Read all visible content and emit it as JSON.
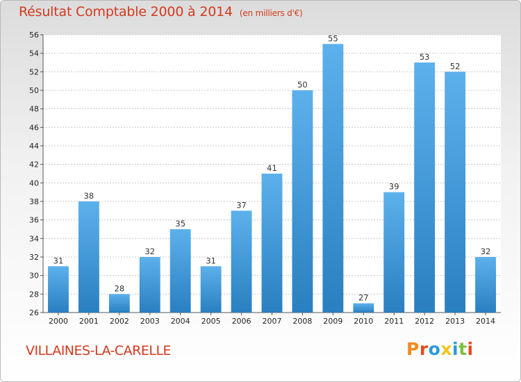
{
  "header": {
    "title": "Résultat Comptable 2000 à 2014",
    "subtitle": "(en milliers d'€)"
  },
  "footer": {
    "commune": "VILLAINES-LA-CARELLE",
    "logo_text": "Proxiti"
  },
  "colors": {
    "title": "#d23a1e",
    "bar_light": "#5cb1ec",
    "bar_dark": "#2a7fc0",
    "logo": [
      "#f08a1c",
      "#e84a1a",
      "#2c9ad8",
      "#f0c61c",
      "#2c9ad8",
      "#7cc040",
      "#e84a1a"
    ]
  },
  "chart_data": {
    "type": "bar",
    "title": "Résultat Comptable 2000 à 2014",
    "subtitle": "(en milliers d'€)",
    "categories": [
      "2000",
      "2001",
      "2002",
      "2003",
      "2004",
      "2005",
      "2006",
      "2007",
      "2008",
      "2009",
      "2010",
      "2011",
      "2012",
      "2013",
      "2014"
    ],
    "values": [
      31,
      38,
      28,
      32,
      35,
      31,
      37,
      41,
      50,
      55,
      27,
      39,
      53,
      52,
      32
    ],
    "ylim": [
      26,
      56
    ],
    "yticks": [
      26,
      28,
      30,
      32,
      34,
      36,
      38,
      40,
      42,
      44,
      46,
      48,
      50,
      52,
      54,
      56
    ],
    "grid": true,
    "data_labels": true
  }
}
